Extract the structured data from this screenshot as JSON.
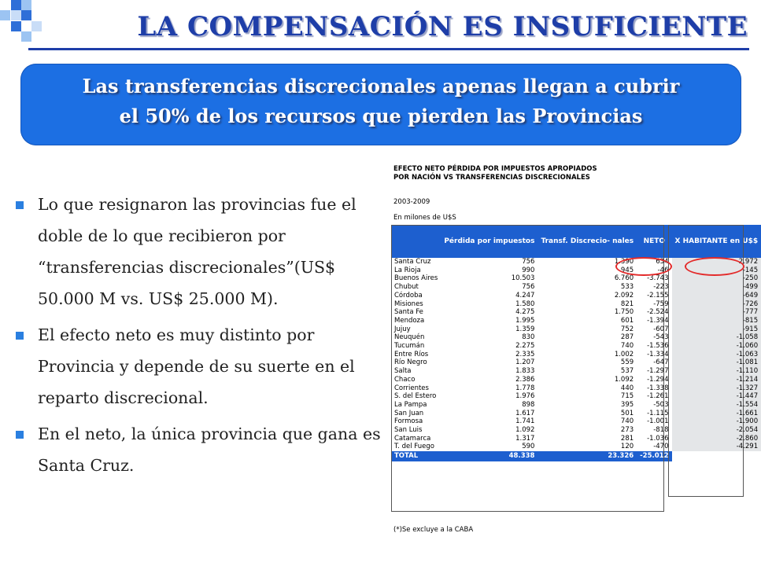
{
  "header": {
    "title": "LA COMPENSACIÓN ES INSUFICIENTE"
  },
  "banner": {
    "line1": "Las transferencias discrecionales apenas llegan a cubrir",
    "line2": "el 50% de los recursos que pierden las Provincias"
  },
  "bullets": [
    "Lo que resignaron las provincias fue el doble de lo que recibieron por “transferencias discrecionales”(US$ 50.000 M vs. US$ 25.000 M).",
    "El efecto neto es muy distinto por Provincia y depende de su suerte en el reparto discrecional.",
    "En el neto, la única provincia que gana es Santa Cruz."
  ],
  "table": {
    "title_line1": "EFECTO NETO PÉRDIDA POR IMPUESTOS APROPIADOS",
    "title_line2": "POR NACIÓN VS TRANSFERENCIAS DISCRECIONALES",
    "period": "2003-2009",
    "units": "En milones de U$S",
    "columns": [
      "",
      "Pérdida por impuestos",
      "Transf. Discrecio- nales",
      "NETO",
      "X HABITANTE en U$$"
    ],
    "rows": [
      [
        "Santa Cruz",
        "756",
        "1.390",
        "634",
        "2.972"
      ],
      [
        "La Rioja",
        "990",
        "945",
        "-46",
        "-145"
      ],
      [
        "Buenos Aires",
        "10.503",
        "6.760",
        "-3.743",
        "-250"
      ],
      [
        "Chubut",
        "756",
        "533",
        "-223",
        "-499"
      ],
      [
        "Córdoba",
        "4.247",
        "2.092",
        "-2.155",
        "-649"
      ],
      [
        "Misiones",
        "1.580",
        "821",
        "-759",
        "-726"
      ],
      [
        "Santa Fe",
        "4.275",
        "1.750",
        "-2.524",
        "-777"
      ],
      [
        "Mendoza",
        "1.995",
        "601",
        "-1.394",
        "-815"
      ],
      [
        "Jujuy",
        "1.359",
        "752",
        "-607",
        "-915"
      ],
      [
        "Neuquén",
        "830",
        "287",
        "-543",
        "-1.058"
      ],
      [
        "Tucumán",
        "2.275",
        "740",
        "-1.536",
        "-1.060"
      ],
      [
        "Entre Ríos",
        "2.335",
        "1.002",
        "-1.334",
        "-1.063"
      ],
      [
        "Río Negro",
        "1.207",
        "559",
        "-647",
        "-1.081"
      ],
      [
        "Salta",
        "1.833",
        "537",
        "-1.297",
        "-1.110"
      ],
      [
        "Chaco",
        "2.386",
        "1.092",
        "-1.294",
        "-1.214"
      ],
      [
        "Corrientes",
        "1.778",
        "440",
        "-1.338",
        "-1.327"
      ],
      [
        "S. del Estero",
        "1.976",
        "715",
        "-1.261",
        "-1.447"
      ],
      [
        "La Pampa",
        "898",
        "395",
        "-503",
        "-1.554"
      ],
      [
        "San Juan",
        "1.617",
        "501",
        "-1.115",
        "-1.661"
      ],
      [
        "Formosa",
        "1.741",
        "740",
        "-1.001",
        "-1.900"
      ],
      [
        "San Luis",
        "1.092",
        "273",
        "-818",
        "-2.054"
      ],
      [
        "Catamarca",
        "1.317",
        "281",
        "-1.036",
        "-2.860"
      ],
      [
        "T. del Fuego",
        "590",
        "120",
        "-470",
        "-4.291"
      ]
    ],
    "total": [
      "TOTAL",
      "48.338",
      "23.326",
      "-25.012"
    ],
    "footnote": "(*)Se excluye a la CABA"
  },
  "colors": {
    "title": "#1e3ea8",
    "banner": "#1c6fe3",
    "table_header": "#1d5fcf",
    "highlight": "#e32a2a"
  }
}
